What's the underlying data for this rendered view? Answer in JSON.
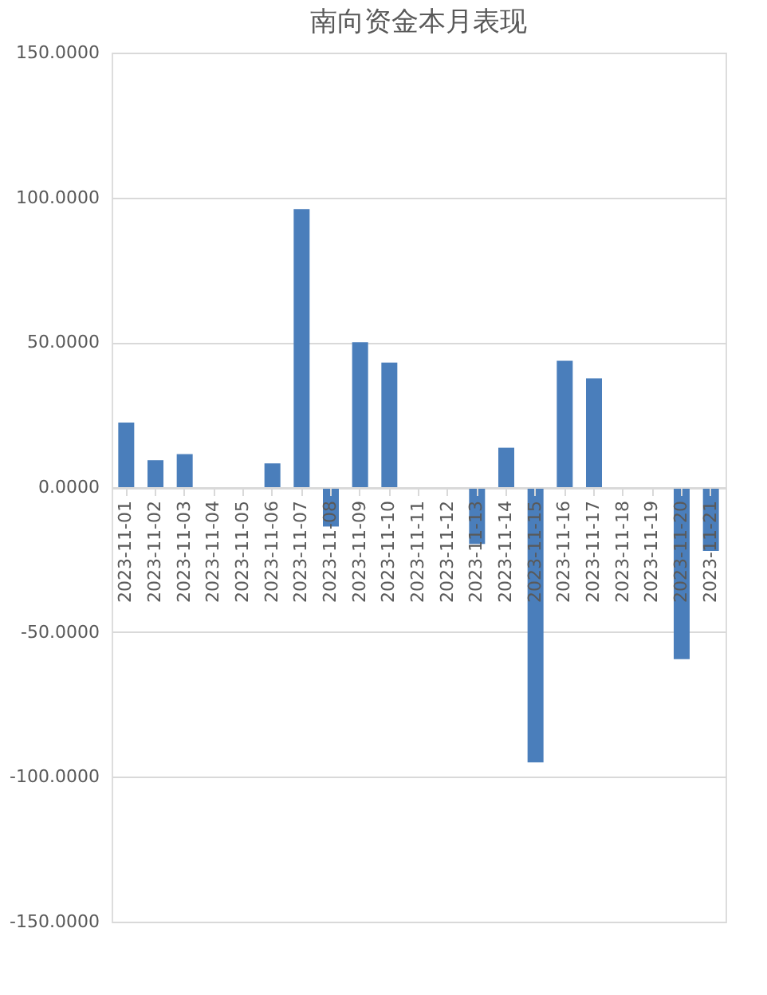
{
  "chart_data": {
    "type": "bar",
    "title": "南向资金本月表现",
    "categories": [
      "2023-11-01",
      "2023-11-02",
      "2023-11-03",
      "2023-11-04",
      "2023-11-05",
      "2023-11-06",
      "2023-11-07",
      "2023-11-08",
      "2023-11-09",
      "2023-11-10",
      "2023-11-11",
      "2023-11-12",
      "2023-11-13",
      "2023-11-14",
      "2023-11-15",
      "2023-11-16",
      "2023-11-17",
      "2023-11-18",
      "2023-11-19",
      "2023-11-20",
      "2023-11-21"
    ],
    "values": [
      22.3,
      9.3,
      11.4,
      null,
      null,
      8.2,
      96.0,
      -13.6,
      50.0,
      43.0,
      null,
      null,
      -19.6,
      13.6,
      -95.0,
      43.6,
      37.6,
      null,
      null,
      -59.4,
      -22.0
    ],
    "color": "#4a7ebb",
    "ylim": [
      -150,
      150
    ],
    "yticks": [
      {
        "value": -150,
        "label": "-150.0000"
      },
      {
        "value": -100,
        "label": "-100.0000"
      },
      {
        "value": -50,
        "label": "-50.0000"
      },
      {
        "value": 0,
        "label": "0.0000"
      },
      {
        "value": 50,
        "label": "50.0000"
      },
      {
        "value": 100,
        "label": "100.0000"
      },
      {
        "value": 150,
        "label": "150.0000"
      }
    ],
    "grid": "y"
  }
}
